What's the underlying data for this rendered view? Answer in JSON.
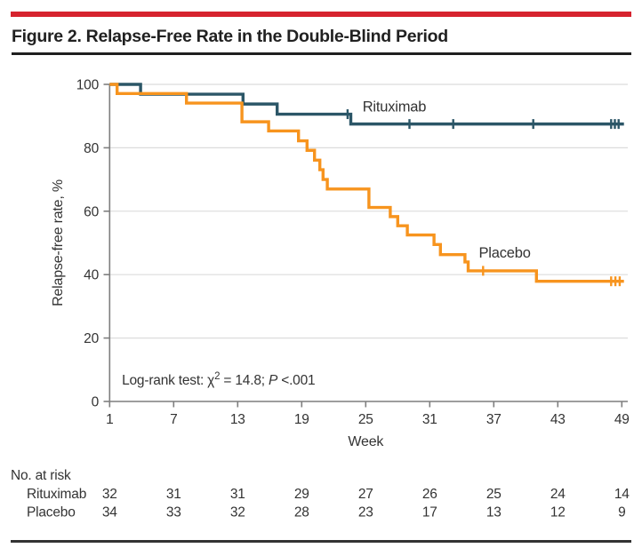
{
  "figure": {
    "title": "Figure 2. Relapse-Free Rate in the Double-Blind Period"
  },
  "colors": {
    "accent_red": "#d6232e",
    "rituximab": "#2b5667",
    "placebo": "#f7941e",
    "grid": "#dcdcdc",
    "axis": "#7f7f7f",
    "text": "#333333",
    "title": "#212121"
  },
  "chart_data": {
    "type": "line",
    "subtype": "kaplan-meier-step",
    "xlabel": "Week",
    "ylabel": "Relapse-free rate, %",
    "xlim": [
      1,
      49
    ],
    "ylim": [
      0,
      100
    ],
    "x_ticks": [
      1,
      7,
      13,
      19,
      25,
      31,
      37,
      43,
      49
    ],
    "y_ticks": [
      0,
      20,
      40,
      60,
      80,
      100
    ],
    "grid": "horizontal",
    "annotation": {
      "prefix": "Log-rank test: χ",
      "superscript": "2",
      "middle": " = 14.8; ",
      "italic": "P",
      "suffix": " <.001",
      "week": 2.15,
      "pct": 5.3
    },
    "series": [
      {
        "name": "Rituximab",
        "color_key": "rituximab",
        "steps": [
          [
            1,
            100
          ],
          [
            3.9,
            96.9
          ],
          [
            13.5,
            93.8
          ],
          [
            16.7,
            90.6
          ],
          [
            23.6,
            87.5
          ]
        ],
        "censors": [
          [
            23.3,
            90.6
          ],
          [
            29.1,
            87.5
          ],
          [
            33.2,
            87.5
          ],
          [
            40.7,
            87.5
          ],
          [
            48.0,
            87.5
          ],
          [
            48.35,
            87.5
          ],
          [
            48.7,
            87.5
          ]
        ],
        "end_week": 49.2,
        "label_pos": {
          "week": 24.7,
          "pct": 91.5
        }
      },
      {
        "name": "Placebo",
        "color_key": "placebo",
        "steps": [
          [
            1,
            100
          ],
          [
            1.7,
            97.1
          ],
          [
            8.2,
            94.1
          ],
          [
            13.4,
            88.2
          ],
          [
            15.9,
            85.3
          ],
          [
            18.7,
            82.2
          ],
          [
            19.5,
            79.2
          ],
          [
            20.2,
            76.1
          ],
          [
            20.7,
            73.1
          ],
          [
            21.0,
            70.0
          ],
          [
            21.4,
            67.0
          ],
          [
            25.3,
            61.2
          ],
          [
            27.3,
            58.3
          ],
          [
            28.0,
            55.4
          ],
          [
            28.9,
            52.5
          ],
          [
            31.4,
            49.5
          ],
          [
            32.0,
            46.3
          ],
          [
            34.3,
            44.0
          ],
          [
            34.6,
            41.2
          ],
          [
            41.0,
            37.9
          ]
        ],
        "censors": [
          [
            36.0,
            41.2
          ],
          [
            48.0,
            37.9
          ],
          [
            48.4,
            37.9
          ],
          [
            48.8,
            37.9
          ]
        ],
        "end_week": 49.2,
        "label_pos": {
          "week": 35.6,
          "pct": 45.4
        }
      }
    ],
    "risk_table": {
      "heading": "No. at risk",
      "weeks": [
        1,
        7,
        13,
        19,
        25,
        31,
        37,
        43,
        49
      ],
      "rows": [
        {
          "name": "Rituximab",
          "values": [
            32,
            31,
            31,
            29,
            27,
            26,
            25,
            24,
            14
          ]
        },
        {
          "name": "Placebo",
          "values": [
            34,
            33,
            32,
            28,
            23,
            17,
            13,
            12,
            9
          ]
        }
      ]
    }
  }
}
